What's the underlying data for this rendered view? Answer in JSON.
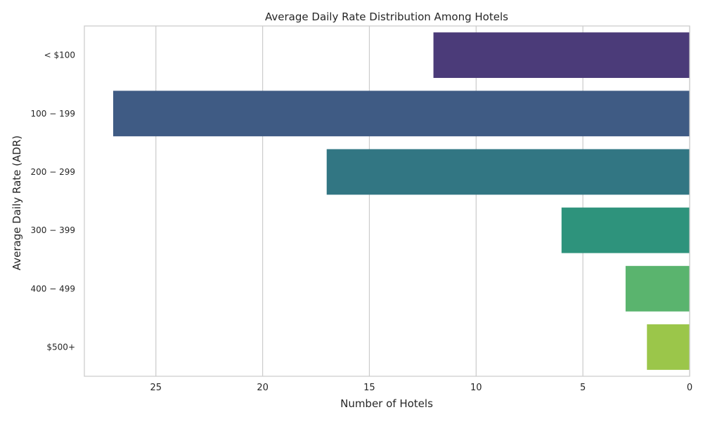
{
  "chart_data": {
    "type": "bar",
    "orientation": "horizontal",
    "x_axis_inverted": true,
    "title": "Average Daily Rate Distribution Among Hotels",
    "xlabel": "Number of Hotels",
    "ylabel": "Average Daily Rate (ADR)",
    "categories": [
      "< $100",
      "$100 - $199",
      "$200 - $299",
      "$300 - $399",
      "$400 - $499",
      "$500+"
    ],
    "category_tick_labels": [
      "< $100",
      "100 − 199",
      "200 − 299",
      "300 − 399",
      "400 − 499",
      "$500+"
    ],
    "values": [
      12,
      27,
      17,
      6,
      3,
      2
    ],
    "colors": [
      "#4b3b79",
      "#3f5b84",
      "#327683",
      "#2e937c",
      "#5ab46e",
      "#9bc64a"
    ],
    "xlim": [
      28.35,
      0
    ],
    "xticks": [
      25,
      20,
      15,
      10,
      5,
      0
    ],
    "grid": true
  }
}
